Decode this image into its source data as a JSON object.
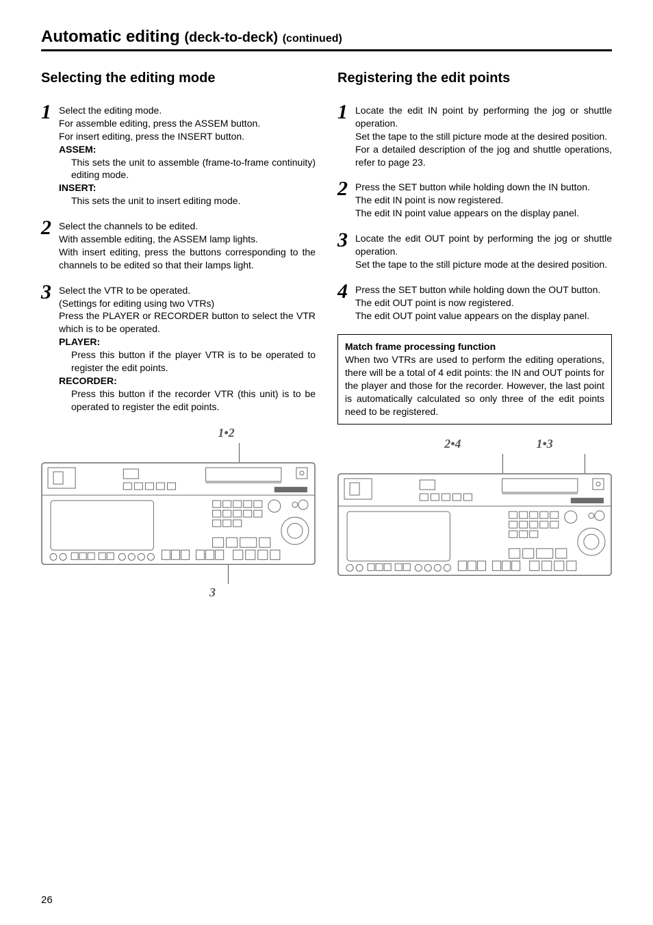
{
  "page": {
    "title_main": "Automatic editing",
    "title_sub1": "(deck-to-deck)",
    "title_sub2": "(continued)",
    "page_number": "26"
  },
  "left": {
    "heading": "Selecting the editing mode",
    "steps": [
      {
        "num": "1",
        "lines": [
          "Select the editing mode.",
          "For assemble editing, press the ASSEM button.",
          "For insert editing, press the INSERT button."
        ],
        "subsections": [
          {
            "head": "ASSEM:",
            "body": "This sets the unit to assemble (frame-to-frame continuity) editing mode."
          },
          {
            "head": "INSERT:",
            "body": "This sets the unit to insert editing mode."
          }
        ]
      },
      {
        "num": "2",
        "lines": [
          "Select the channels to be edited.",
          "With assemble editing, the ASSEM lamp lights.",
          "With insert editing, press the buttons corresponding to the channels to be edited so that their lamps light."
        ],
        "subsections": []
      },
      {
        "num": "3",
        "lines": [
          "Select the VTR to be operated.",
          "(Settings for editing using two VTRs)",
          "Press the PLAYER or RECORDER button to select the VTR which is to be operated."
        ],
        "subsections": [
          {
            "head": "PLAYER:",
            "body": "Press this button if the player VTR is to be operated to register the edit points."
          },
          {
            "head": "RECORDER:",
            "body": "Press this button if the recorder VTR (this unit) is to be operated to register the edit points."
          }
        ]
      }
    ],
    "figure": {
      "top_label": "1•2",
      "bottom_label": "3",
      "pointer_top_pct": 72,
      "pointer_bottom_pct": 68
    }
  },
  "right": {
    "heading": "Registering the edit points",
    "steps": [
      {
        "num": "1",
        "lines_justify": [
          "Locate the edit IN point by performing the jog or shuttle operation.",
          "Set the tape to the still picture mode at the desired position.",
          "For a detailed description of the jog and shuttle operations, refer to page 23."
        ]
      },
      {
        "num": "2",
        "lines_justify": [
          "Press the SET button while holding down the IN button.",
          "The edit IN point is now registered.",
          "The edit IN point value appears on the display panel."
        ]
      },
      {
        "num": "3",
        "lines_justify": [
          "Locate the edit OUT point by performing the jog or shuttle operation.",
          "Set the tape to the still picture mode at the desired position."
        ]
      },
      {
        "num": "4",
        "lines_justify": [
          "Press the SET button while holding down the OUT button.",
          "The edit OUT point is now registered.",
          "The edit OUT point value appears on the display panel."
        ]
      }
    ],
    "box": {
      "title": "Match frame processing function",
      "body": "When two VTRs are used to perform the editing operations, there will be a total of 4 edit points: the IN and OUT points for the player and those for the recorder. However, the last point is automatically calculated so only three of the edit points need to be registered."
    },
    "figure": {
      "top_label_left": "2•4",
      "top_label_right": "1•3",
      "pointer_left_pct": 60,
      "pointer_right_pct": 90
    }
  },
  "colors": {
    "text": "#000000",
    "bg": "#ffffff",
    "fig_label": "#555555",
    "fig_stroke": "#6b6b6b"
  }
}
